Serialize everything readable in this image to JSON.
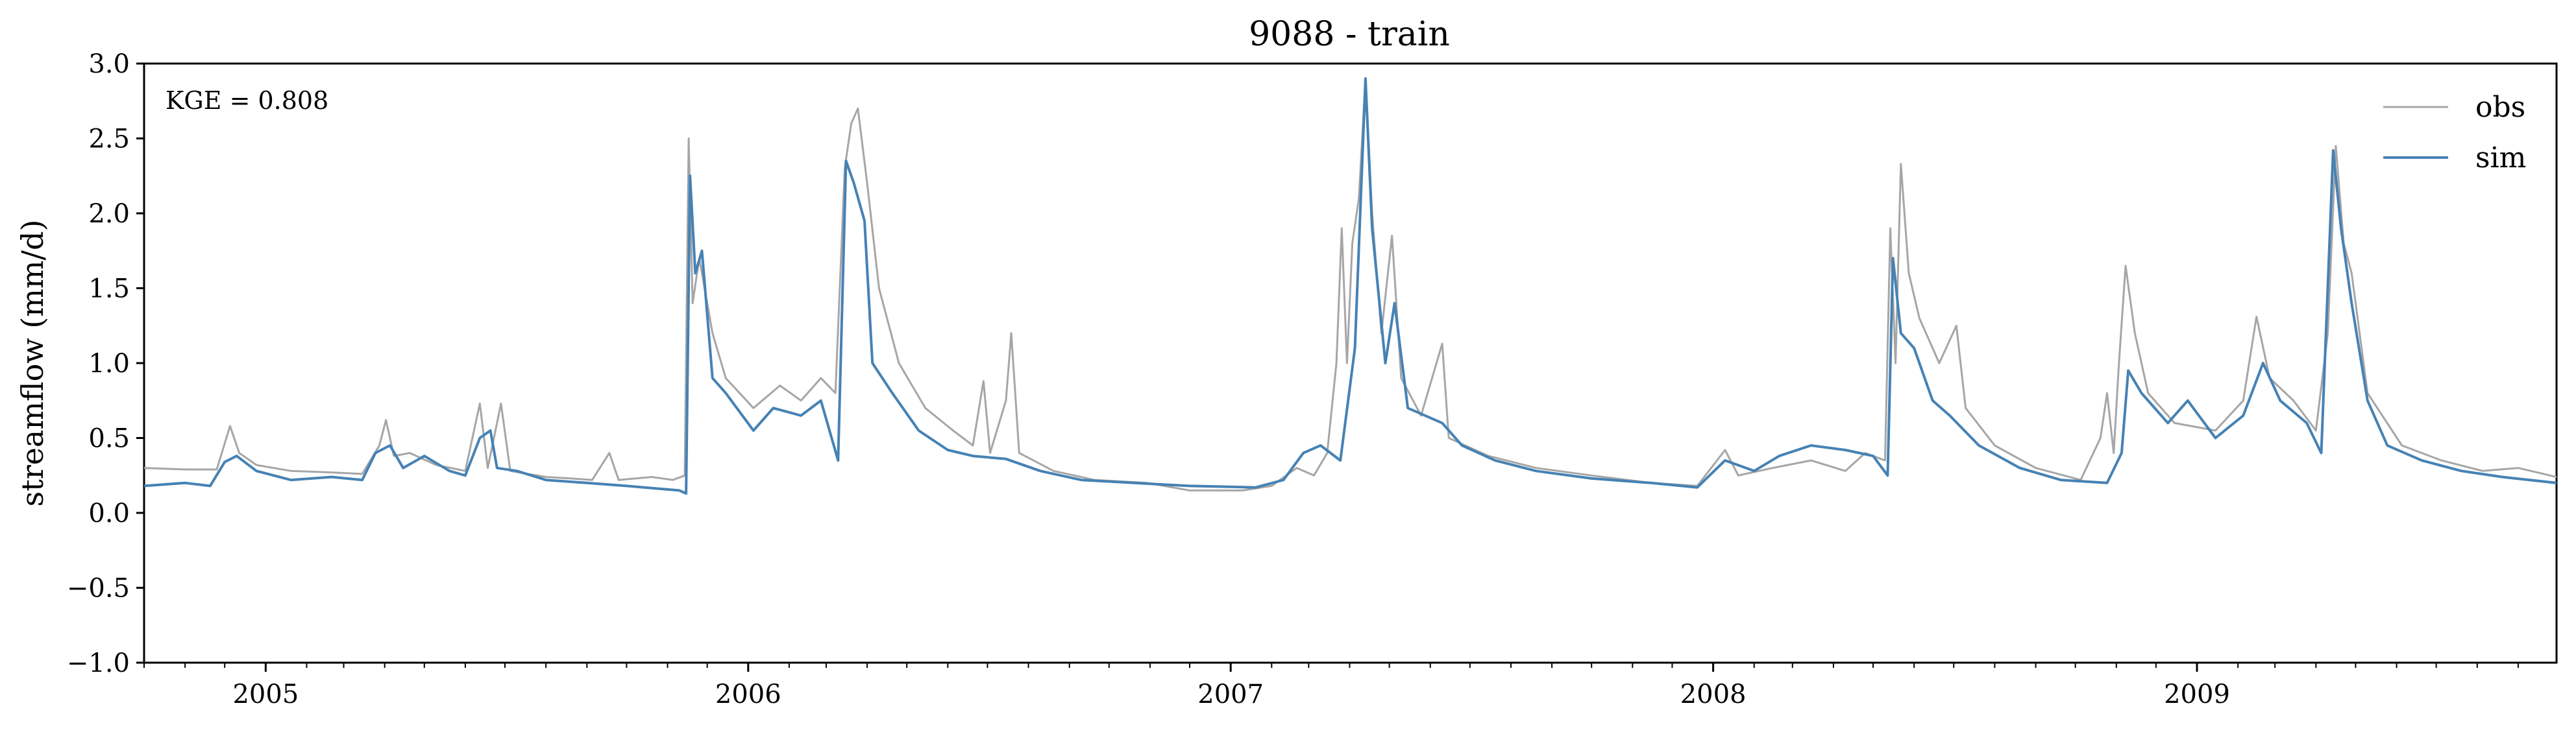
{
  "chart_data": {
    "type": "line",
    "title": "9088 - train",
    "xlabel": "",
    "ylabel": "streamflow (mm/d)",
    "annotation": "KGE = 0.808",
    "xlim": [
      "2004-10-01",
      "2009-09-30"
    ],
    "ylim": [
      -1.0,
      3.0
    ],
    "y_ticks": [
      -1.0,
      -0.5,
      0.0,
      0.5,
      1.0,
      1.5,
      2.0,
      2.5,
      3.0
    ],
    "y_tick_labels": [
      "−1.0",
      "−0.5",
      "0.0",
      "0.5",
      "1.0",
      "1.5",
      "2.0",
      "2.5",
      "3.0"
    ],
    "x_ticks": [
      "2005-01-01",
      "2006-01-01",
      "2007-01-01",
      "2008-01-01",
      "2009-01-01"
    ],
    "x_tick_labels": [
      "2005",
      "2006",
      "2007",
      "2008",
      "2009"
    ],
    "grid": false,
    "legend_position": "top-right",
    "colors": {
      "obs": "#a6a6a6",
      "sim": "#4682b4",
      "axis": "#000000"
    },
    "series": [
      {
        "name": "obs",
        "color": "#a6a6a6",
        "points": [
          [
            "2004-10-01",
            0.3
          ],
          [
            "2004-11-01",
            0.29
          ],
          [
            "2004-11-25",
            0.29
          ],
          [
            "2004-12-05",
            0.58
          ],
          [
            "2004-12-12",
            0.4
          ],
          [
            "2004-12-25",
            0.32
          ],
          [
            "2005-01-20",
            0.28
          ],
          [
            "2005-02-20",
            0.27
          ],
          [
            "2005-03-15",
            0.26
          ],
          [
            "2005-03-28",
            0.45
          ],
          [
            "2005-04-02",
            0.62
          ],
          [
            "2005-04-08",
            0.38
          ],
          [
            "2005-04-20",
            0.4
          ],
          [
            "2005-05-10",
            0.32
          ],
          [
            "2005-06-01",
            0.28
          ],
          [
            "2005-06-12",
            0.73
          ],
          [
            "2005-06-18",
            0.3
          ],
          [
            "2005-06-28",
            0.73
          ],
          [
            "2005-07-05",
            0.28
          ],
          [
            "2005-08-01",
            0.24
          ],
          [
            "2005-08-20",
            0.23
          ],
          [
            "2005-09-05",
            0.22
          ],
          [
            "2005-09-18",
            0.4
          ],
          [
            "2005-09-25",
            0.22
          ],
          [
            "2005-10-20",
            0.24
          ],
          [
            "2005-11-05",
            0.22
          ],
          [
            "2005-11-14",
            0.25
          ],
          [
            "2005-11-17",
            2.5
          ],
          [
            "2005-11-20",
            1.4
          ],
          [
            "2005-11-25",
            1.7
          ],
          [
            "2005-12-05",
            1.2
          ],
          [
            "2005-12-15",
            0.9
          ],
          [
            "2006-01-05",
            0.7
          ],
          [
            "2006-01-25",
            0.85
          ],
          [
            "2006-02-10",
            0.75
          ],
          [
            "2006-02-25",
            0.9
          ],
          [
            "2006-03-08",
            0.8
          ],
          [
            "2006-03-15",
            2.3
          ],
          [
            "2006-03-20",
            2.6
          ],
          [
            "2006-03-25",
            2.7
          ],
          [
            "2006-04-01",
            2.2
          ],
          [
            "2006-04-10",
            1.5
          ],
          [
            "2006-04-25",
            1.0
          ],
          [
            "2006-05-15",
            0.7
          ],
          [
            "2006-06-05",
            0.55
          ],
          [
            "2006-06-20",
            0.45
          ],
          [
            "2006-06-28",
            0.88
          ],
          [
            "2006-07-03",
            0.4
          ],
          [
            "2006-07-15",
            0.75
          ],
          [
            "2006-07-19",
            1.2
          ],
          [
            "2006-07-25",
            0.4
          ],
          [
            "2006-08-20",
            0.28
          ],
          [
            "2006-09-20",
            0.22
          ],
          [
            "2006-10-30",
            0.2
          ],
          [
            "2006-12-01",
            0.15
          ],
          [
            "2007-01-10",
            0.15
          ],
          [
            "2007-02-01",
            0.18
          ],
          [
            "2007-02-20",
            0.3
          ],
          [
            "2007-03-05",
            0.25
          ],
          [
            "2007-03-15",
            0.4
          ],
          [
            "2007-03-22",
            1.0
          ],
          [
            "2007-03-26",
            1.9
          ],
          [
            "2007-03-30",
            1.0
          ],
          [
            "2007-04-03",
            1.8
          ],
          [
            "2007-04-08",
            2.1
          ],
          [
            "2007-04-13",
            2.9
          ],
          [
            "2007-04-18",
            2.0
          ],
          [
            "2007-04-25",
            1.2
          ],
          [
            "2007-05-03",
            1.85
          ],
          [
            "2007-05-10",
            0.9
          ],
          [
            "2007-05-25",
            0.65
          ],
          [
            "2007-06-10",
            1.13
          ],
          [
            "2007-06-15",
            0.5
          ],
          [
            "2007-07-15",
            0.38
          ],
          [
            "2007-08-20",
            0.3
          ],
          [
            "2007-10-01",
            0.25
          ],
          [
            "2007-11-15",
            0.2
          ],
          [
            "2007-12-20",
            0.18
          ],
          [
            "2008-01-10",
            0.42
          ],
          [
            "2008-01-20",
            0.25
          ],
          [
            "2008-02-15",
            0.3
          ],
          [
            "2008-03-15",
            0.35
          ],
          [
            "2008-04-10",
            0.28
          ],
          [
            "2008-04-25",
            0.4
          ],
          [
            "2008-05-10",
            0.35
          ],
          [
            "2008-05-14",
            1.9
          ],
          [
            "2008-05-18",
            1.0
          ],
          [
            "2008-05-22",
            2.33
          ],
          [
            "2008-05-28",
            1.6
          ],
          [
            "2008-06-05",
            1.3
          ],
          [
            "2008-06-20",
            1.0
          ],
          [
            "2008-07-03",
            1.25
          ],
          [
            "2008-07-10",
            0.7
          ],
          [
            "2008-08-01",
            0.45
          ],
          [
            "2008-09-01",
            0.3
          ],
          [
            "2008-10-05",
            0.22
          ],
          [
            "2008-10-20",
            0.5
          ],
          [
            "2008-10-25",
            0.8
          ],
          [
            "2008-10-30",
            0.4
          ],
          [
            "2008-11-03",
            1.0
          ],
          [
            "2008-11-08",
            1.65
          ],
          [
            "2008-11-15",
            1.2
          ],
          [
            "2008-11-25",
            0.8
          ],
          [
            "2008-12-15",
            0.6
          ],
          [
            "2009-01-15",
            0.55
          ],
          [
            "2009-02-05",
            0.75
          ],
          [
            "2009-02-15",
            1.31
          ],
          [
            "2009-02-25",
            0.9
          ],
          [
            "2009-03-15",
            0.75
          ],
          [
            "2009-04-01",
            0.55
          ],
          [
            "2009-04-10",
            1.2
          ],
          [
            "2009-04-16",
            2.45
          ],
          [
            "2009-04-22",
            1.8
          ],
          [
            "2009-04-28",
            1.6
          ],
          [
            "2009-05-10",
            0.8
          ],
          [
            "2009-06-05",
            0.45
          ],
          [
            "2009-07-05",
            0.35
          ],
          [
            "2009-08-05",
            0.28
          ],
          [
            "2009-09-01",
            0.3
          ],
          [
            "2009-09-30",
            0.24
          ]
        ]
      },
      {
        "name": "sim",
        "color": "#4682b4",
        "points": [
          [
            "2004-10-01",
            0.18
          ],
          [
            "2004-11-01",
            0.2
          ],
          [
            "2004-11-20",
            0.18
          ],
          [
            "2004-12-01",
            0.34
          ],
          [
            "2004-12-10",
            0.38
          ],
          [
            "2004-12-25",
            0.28
          ],
          [
            "2005-01-20",
            0.22
          ],
          [
            "2005-02-20",
            0.24
          ],
          [
            "2005-03-15",
            0.22
          ],
          [
            "2005-03-25",
            0.4
          ],
          [
            "2005-04-05",
            0.45
          ],
          [
            "2005-04-15",
            0.3
          ],
          [
            "2005-05-01",
            0.38
          ],
          [
            "2005-05-20",
            0.28
          ],
          [
            "2005-06-01",
            0.25
          ],
          [
            "2005-06-12",
            0.5
          ],
          [
            "2005-06-20",
            0.55
          ],
          [
            "2005-06-25",
            0.3
          ],
          [
            "2005-07-10",
            0.28
          ],
          [
            "2005-08-01",
            0.22
          ],
          [
            "2005-09-01",
            0.2
          ],
          [
            "2005-10-01",
            0.18
          ],
          [
            "2005-11-10",
            0.15
          ],
          [
            "2005-11-15",
            0.13
          ],
          [
            "2005-11-18",
            2.25
          ],
          [
            "2005-11-22",
            1.6
          ],
          [
            "2005-11-27",
            1.75
          ],
          [
            "2005-12-05",
            0.9
          ],
          [
            "2005-12-15",
            0.8
          ],
          [
            "2006-01-05",
            0.55
          ],
          [
            "2006-01-20",
            0.7
          ],
          [
            "2006-02-10",
            0.65
          ],
          [
            "2006-02-25",
            0.75
          ],
          [
            "2006-03-10",
            0.35
          ],
          [
            "2006-03-16",
            2.35
          ],
          [
            "2006-03-22",
            2.2
          ],
          [
            "2006-03-30",
            1.95
          ],
          [
            "2006-04-05",
            1.0
          ],
          [
            "2006-04-20",
            0.8
          ],
          [
            "2006-05-10",
            0.55
          ],
          [
            "2006-06-01",
            0.42
          ],
          [
            "2006-06-20",
            0.38
          ],
          [
            "2006-07-15",
            0.36
          ],
          [
            "2006-08-10",
            0.28
          ],
          [
            "2006-09-10",
            0.22
          ],
          [
            "2006-10-20",
            0.2
          ],
          [
            "2006-12-01",
            0.18
          ],
          [
            "2007-01-20",
            0.17
          ],
          [
            "2007-02-10",
            0.22
          ],
          [
            "2007-02-25",
            0.4
          ],
          [
            "2007-03-10",
            0.45
          ],
          [
            "2007-03-25",
            0.35
          ],
          [
            "2007-04-05",
            1.1
          ],
          [
            "2007-04-13",
            2.9
          ],
          [
            "2007-04-18",
            1.9
          ],
          [
            "2007-04-28",
            1.0
          ],
          [
            "2007-05-05",
            1.4
          ],
          [
            "2007-05-15",
            0.7
          ],
          [
            "2007-06-10",
            0.6
          ],
          [
            "2007-06-25",
            0.45
          ],
          [
            "2007-07-20",
            0.35
          ],
          [
            "2007-08-20",
            0.28
          ],
          [
            "2007-10-01",
            0.23
          ],
          [
            "2007-11-15",
            0.2
          ],
          [
            "2007-12-20",
            0.17
          ],
          [
            "2008-01-10",
            0.35
          ],
          [
            "2008-02-01",
            0.28
          ],
          [
            "2008-02-20",
            0.38
          ],
          [
            "2008-03-15",
            0.45
          ],
          [
            "2008-04-10",
            0.42
          ],
          [
            "2008-05-01",
            0.38
          ],
          [
            "2008-05-12",
            0.25
          ],
          [
            "2008-05-16",
            1.7
          ],
          [
            "2008-05-22",
            1.2
          ],
          [
            "2008-06-01",
            1.1
          ],
          [
            "2008-06-15",
            0.75
          ],
          [
            "2008-06-28",
            0.65
          ],
          [
            "2008-07-20",
            0.45
          ],
          [
            "2008-08-20",
            0.3
          ],
          [
            "2008-09-20",
            0.22
          ],
          [
            "2008-10-25",
            0.2
          ],
          [
            "2008-11-05",
            0.4
          ],
          [
            "2008-11-10",
            0.95
          ],
          [
            "2008-11-20",
            0.8
          ],
          [
            "2008-12-10",
            0.6
          ],
          [
            "2008-12-25",
            0.75
          ],
          [
            "2009-01-15",
            0.5
          ],
          [
            "2009-02-05",
            0.65
          ],
          [
            "2009-02-20",
            1.0
          ],
          [
            "2009-03-05",
            0.75
          ],
          [
            "2009-03-25",
            0.6
          ],
          [
            "2009-04-05",
            0.4
          ],
          [
            "2009-04-14",
            2.42
          ],
          [
            "2009-04-20",
            1.9
          ],
          [
            "2009-04-28",
            1.4
          ],
          [
            "2009-05-10",
            0.75
          ],
          [
            "2009-05-25",
            0.45
          ],
          [
            "2009-06-20",
            0.35
          ],
          [
            "2009-07-20",
            0.28
          ],
          [
            "2009-08-20",
            0.24
          ],
          [
            "2009-09-30",
            0.2
          ]
        ]
      }
    ]
  }
}
